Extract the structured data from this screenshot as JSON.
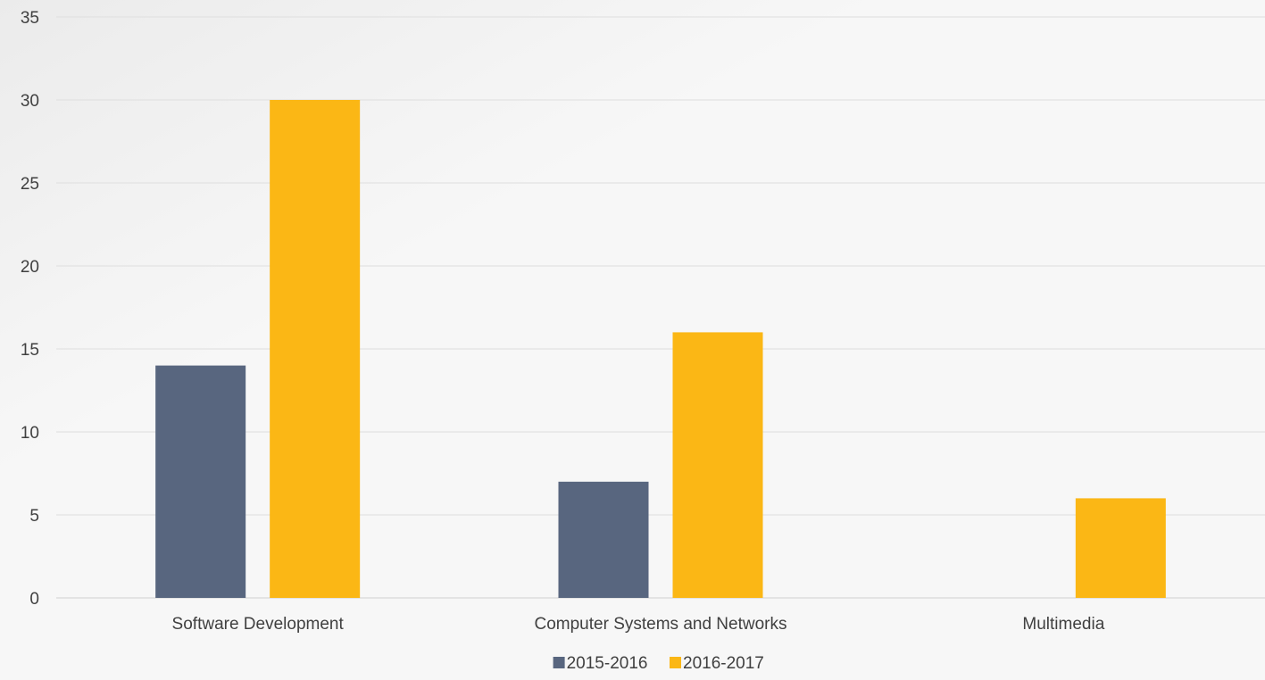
{
  "chart_data": {
    "type": "bar",
    "title": "",
    "xlabel": "",
    "ylabel": "",
    "categories": [
      "Software Development",
      "Computer Systems and Networks",
      "Multimedia"
    ],
    "series": [
      {
        "name": "2015-2016",
        "values": [
          14,
          7,
          0
        ],
        "color": "#58667f"
      },
      {
        "name": "2016-2017",
        "values": [
          30,
          16,
          6
        ],
        "color": "#fbb715"
      }
    ],
    "ylim": [
      0,
      35
    ],
    "yticks": [
      0,
      5,
      10,
      15,
      20,
      25,
      30,
      35
    ],
    "grid": true,
    "legend_position": "bottom-center"
  }
}
